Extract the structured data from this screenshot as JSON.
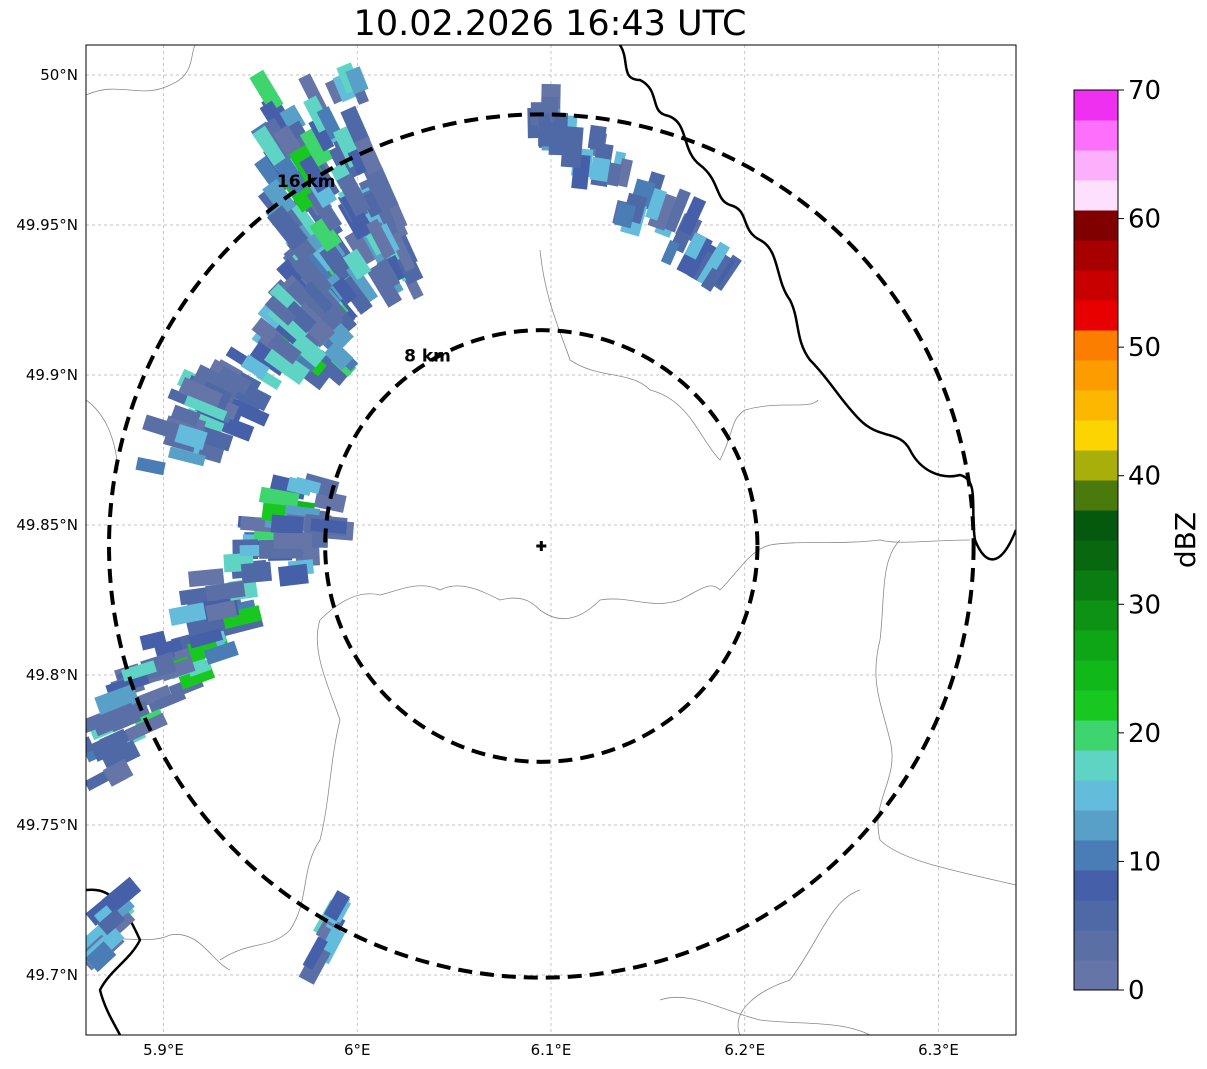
{
  "title": "10.02.2026 16:43 UTC",
  "map": {
    "lon_range": [
      5.86,
      6.34
    ],
    "lat_range": [
      49.68,
      50.01
    ],
    "radar_site": {
      "lon": 6.095,
      "lat": 49.843
    },
    "x_ticks": [
      {
        "value": 5.9,
        "label": "5.9°E"
      },
      {
        "value": 6.0,
        "label": "6°E"
      },
      {
        "value": 6.1,
        "label": "6.1°E"
      },
      {
        "value": 6.2,
        "label": "6.2°E"
      },
      {
        "value": 6.3,
        "label": "6.3°E"
      }
    ],
    "y_ticks": [
      {
        "value": 50.0,
        "label": "50°N"
      },
      {
        "value": 49.95,
        "label": "49.95°N"
      },
      {
        "value": 49.9,
        "label": "49.9°N"
      },
      {
        "value": 49.85,
        "label": "49.85°N"
      },
      {
        "value": 49.8,
        "label": "49.8°N"
      },
      {
        "value": 49.75,
        "label": "49.75°N"
      },
      {
        "value": 49.7,
        "label": "49.7°N"
      }
    ],
    "range_rings": [
      {
        "label": "8 km",
        "radius_km": 8
      },
      {
        "label": "16 km",
        "radius_km": 16
      }
    ]
  },
  "colorbar": {
    "label": "dBZ",
    "min": 0,
    "max": 70,
    "ticks": [
      {
        "value": 0,
        "label": "0"
      },
      {
        "value": 10,
        "label": "10"
      },
      {
        "value": 20,
        "label": "20"
      },
      {
        "value": 30,
        "label": "30"
      },
      {
        "value": 40,
        "label": "40"
      },
      {
        "value": 50,
        "label": "50"
      },
      {
        "value": 60,
        "label": "60"
      },
      {
        "value": 70,
        "label": "70"
      }
    ],
    "colors": [
      "#6675a8",
      "#5a6fa6",
      "#4f68a6",
      "#4560a8",
      "#4a7db5",
      "#58a0c8",
      "#63bcdc",
      "#5fd4c4",
      "#3ed46e",
      "#18c820",
      "#10b81a",
      "#0ea517",
      "#0e9214",
      "#0a7d12",
      "#076810",
      "#05590e",
      "#4a7a0c",
      "#a8ae0a",
      "#fcd400",
      "#fcb800",
      "#fc9c00",
      "#fc7e00",
      "#e80000",
      "#c80000",
      "#a60000",
      "#800000",
      "#fde0fd",
      "#fcb0fc",
      "#fc70fc",
      "#f030f0"
    ]
  },
  "reflectivity_clusters": [
    {
      "name": "north-band",
      "lon0": 5.965,
      "lat0": 49.985,
      "lon1": 5.985,
      "lat1": 49.905,
      "spread_lon": 0.03,
      "count": 90,
      "peak_dbz": 22
    },
    {
      "name": "north-band-east",
      "lon0": 5.99,
      "lat0": 49.995,
      "lon1": 6.02,
      "lat1": 49.93,
      "spread_lon": 0.025,
      "count": 55,
      "peak_dbz": 18
    },
    {
      "name": "northeast-cells",
      "lon0": 6.09,
      "lat0": 49.99,
      "lon1": 6.19,
      "lat1": 49.935,
      "spread_lon": 0.02,
      "count": 45,
      "peak_dbz": 14
    },
    {
      "name": "central-west-band",
      "lon0": 5.905,
      "lat0": 49.875,
      "lon1": 5.995,
      "lat1": 49.935,
      "spread_lon": 0.025,
      "count": 85,
      "peak_dbz": 22
    },
    {
      "name": "southwest-band",
      "lon0": 5.86,
      "lat0": 49.77,
      "lon1": 5.98,
      "lat1": 49.86,
      "spread_lon": 0.025,
      "count": 110,
      "peak_dbz": 24
    },
    {
      "name": "southwest-corner",
      "lon0": 5.86,
      "lat0": 49.695,
      "lon1": 5.875,
      "lat1": 49.725,
      "spread_lon": 0.01,
      "count": 12,
      "peak_dbz": 16
    },
    {
      "name": "south-small-cell",
      "lon0": 5.975,
      "lat0": 49.705,
      "lon1": 5.995,
      "lat1": 49.725,
      "spread_lon": 0.008,
      "count": 12,
      "peak_dbz": 16
    }
  ]
}
